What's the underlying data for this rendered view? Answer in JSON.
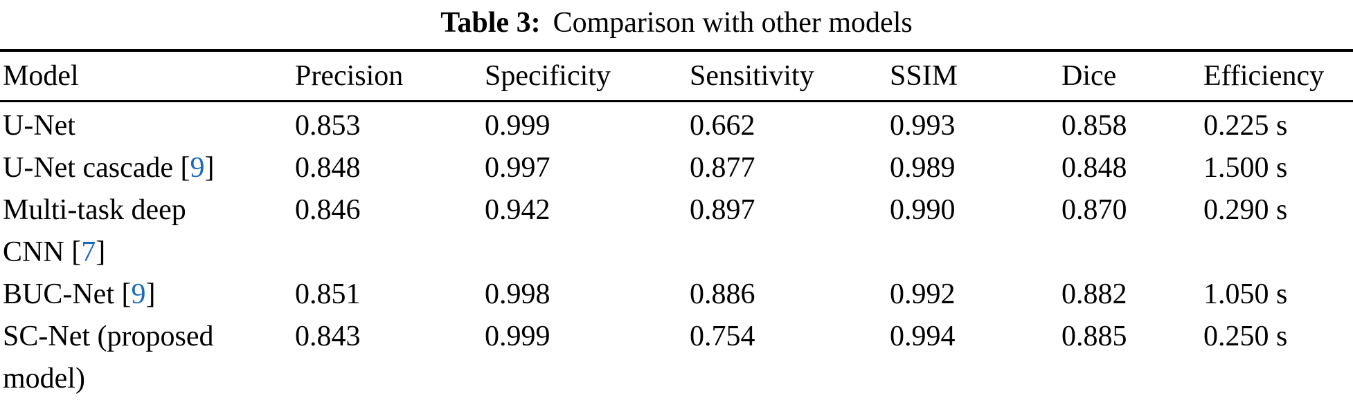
{
  "caption": {
    "label": "Table 3:",
    "text": "Comparison with other models"
  },
  "colors": {
    "text": "#000000",
    "background": "#ffffff",
    "citation": "#1b6ab8",
    "rule": "#000000"
  },
  "table": {
    "columns": [
      "Model",
      "Precision",
      "Specificity",
      "Sensitivity",
      "SSIM",
      "Dice",
      "Efficiency"
    ],
    "cite_prefix": " [",
    "cite_suffix": "]",
    "rows": [
      {
        "model_lines": [
          "U-Net"
        ],
        "precision": "0.853",
        "specificity": "0.999",
        "sensitivity": "0.662",
        "ssim": "0.993",
        "dice": "0.858",
        "efficiency": "0.225 s"
      },
      {
        "model_lines": [
          "U-Net cascade"
        ],
        "cite": "9",
        "precision": "0.848",
        "specificity": "0.997",
        "sensitivity": "0.877",
        "ssim": "0.989",
        "dice": "0.848",
        "efficiency": "1.500 s"
      },
      {
        "model_lines": [
          "Multi-task deep",
          "CNN"
        ],
        "cite": "7",
        "precision": "0.846",
        "specificity": "0.942",
        "sensitivity": "0.897",
        "ssim": "0.990",
        "dice": "0.870",
        "efficiency": "0.290 s"
      },
      {
        "model_lines": [
          "BUC-Net"
        ],
        "cite": "9",
        "precision": "0.851",
        "specificity": "0.998",
        "sensitivity": "0.886",
        "ssim": "0.992",
        "dice": "0.882",
        "efficiency": "1.050 s"
      },
      {
        "model_lines": [
          "SC-Net (proposed",
          "model)"
        ],
        "precision": "0.843",
        "specificity": "0.999",
        "sensitivity": "0.754",
        "ssim": "0.994",
        "dice": "0.885",
        "efficiency": "0.250 s"
      }
    ]
  }
}
